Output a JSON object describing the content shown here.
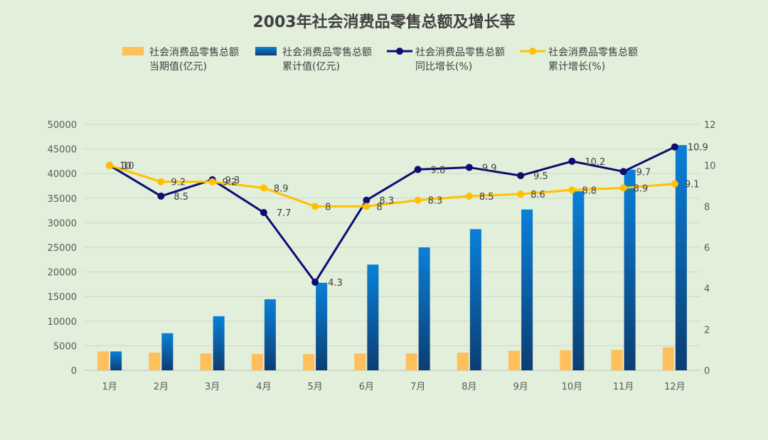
{
  "chart_data": {
    "type": "bar",
    "title": "2003年社会消费品零售总额及增长率",
    "categories": [
      "1月",
      "2月",
      "3月",
      "4月",
      "5月",
      "6月",
      "7月",
      "8月",
      "9月",
      "10月",
      "11月",
      "12月"
    ],
    "left_axis": {
      "range": [
        0,
        50000
      ],
      "ticks": [
        0,
        5000,
        10000,
        15000,
        20000,
        25000,
        30000,
        35000,
        40000,
        45000,
        50000
      ]
    },
    "right_axis": {
      "range": [
        0,
        12
      ],
      "ticks": [
        0,
        2,
        4,
        6,
        8,
        10,
        12
      ]
    },
    "grid": true,
    "legend_position": "top",
    "series": [
      {
        "name": "社会消费品零售总额当期值(亿元)",
        "legend_lines": [
          "社会消费品零售总额",
          "当期值(亿元)"
        ],
        "type": "bar",
        "axis": "left",
        "color": "#ffbf5a",
        "values": [
          3850,
          3600,
          3450,
          3350,
          3300,
          3450,
          3450,
          3600,
          4000,
          4100,
          4150,
          4700
        ]
      },
      {
        "name": "社会消费品零售总额累计值(亿元)",
        "legend_lines": [
          "社会消费品零售总额",
          "累计值(亿元)"
        ],
        "type": "bar",
        "axis": "left",
        "color_top": "#0a80d8",
        "color_bottom": "#0c3d72",
        "values": [
          3850,
          7550,
          11000,
          14450,
          17800,
          21500,
          25000,
          28700,
          32700,
          36400,
          40800,
          45800
        ]
      },
      {
        "name": "社会消费品零售总额同比增长(%)",
        "legend_lines": [
          "社会消费品零售总额",
          "同比增长(%)"
        ],
        "type": "line",
        "axis": "right",
        "color": "#0d0d72",
        "values": [
          10,
          8.5,
          9.3,
          7.7,
          4.3,
          8.3,
          9.8,
          9.9,
          9.5,
          10.2,
          9.7,
          10.9
        ],
        "labels": [
          "10",
          "8.5",
          "9.3",
          "7.7",
          "4.3",
          "8.3",
          "9.8",
          "9.9",
          "9.5",
          "10.2",
          "9.7",
          "10.9"
        ]
      },
      {
        "name": "社会消费品零售总额累计增长(%)",
        "legend_lines": [
          "社会消费品零售总额",
          "累计增长(%)"
        ],
        "type": "line",
        "axis": "right",
        "color": "#ffc000",
        "values": [
          10,
          9.2,
          9.2,
          8.9,
          8,
          8,
          8.3,
          8.5,
          8.6,
          8.8,
          8.9,
          9.1
        ],
        "labels": [
          "10",
          "9.2",
          "9.2",
          "8.9",
          "8",
          "8",
          "8.3",
          "8.5",
          "8.6",
          "8.8",
          "8.9",
          "9.1"
        ]
      }
    ]
  }
}
